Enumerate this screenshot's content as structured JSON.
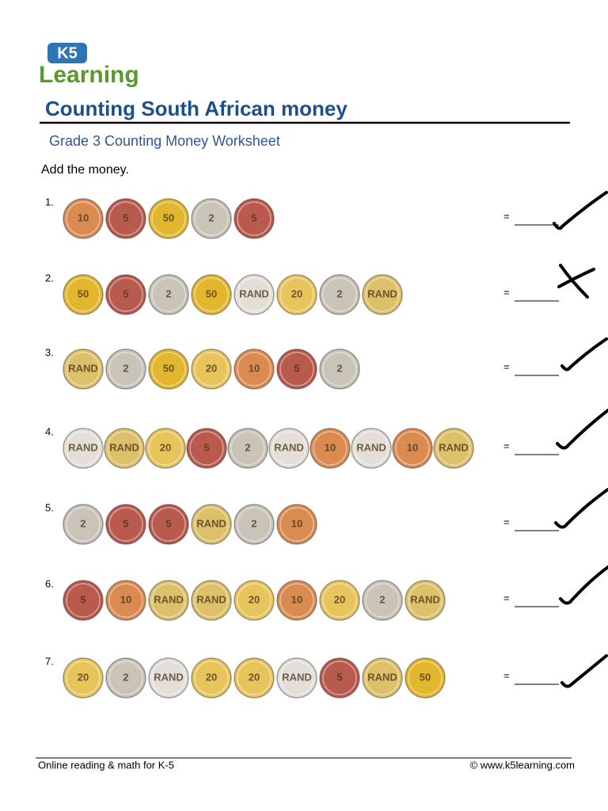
{
  "header": {
    "logo_badge": "K5",
    "logo_word": "Learning",
    "title": "Counting South African money",
    "subtitle": "Grade 3 Counting Money Worksheet"
  },
  "instruction": "Add the money.",
  "equals": "=",
  "questions": [
    {
      "number": "1.",
      "coins": [
        {
          "face": "10",
          "color": "#d98b52"
        },
        {
          "face": "5",
          "color": "#b95a4e"
        },
        {
          "face": "50",
          "color": "#e2b62e"
        },
        {
          "face": "2",
          "color": "#c9c3b8"
        },
        {
          "face": "5",
          "color": "#b95a4e"
        }
      ]
    },
    {
      "number": "2.",
      "coins": [
        {
          "face": "50",
          "color": "#e2b62e"
        },
        {
          "face": "5",
          "color": "#b95a4e"
        },
        {
          "face": "2",
          "color": "#c9c3b8"
        },
        {
          "face": "50",
          "color": "#e2b62e"
        },
        {
          "face": "RAND",
          "color": "#e3dfd8"
        },
        {
          "face": "20",
          "color": "#e8c45c"
        },
        {
          "face": "2",
          "color": "#c9c3b8"
        },
        {
          "face": "RAND",
          "color": "#dcc06a"
        }
      ]
    },
    {
      "number": "3.",
      "coins": [
        {
          "face": "RAND",
          "color": "#dcc06a"
        },
        {
          "face": "2",
          "color": "#c9c3b8"
        },
        {
          "face": "50",
          "color": "#e2b62e"
        },
        {
          "face": "20",
          "color": "#e8c45c"
        },
        {
          "face": "10",
          "color": "#d98b52"
        },
        {
          "face": "5",
          "color": "#b95a4e"
        },
        {
          "face": "2",
          "color": "#c9c3b8"
        }
      ]
    },
    {
      "number": "4.",
      "coins": [
        {
          "face": "RAND",
          "color": "#e3dfd8"
        },
        {
          "face": "RAND",
          "color": "#dcc06a"
        },
        {
          "face": "20",
          "color": "#e8c45c"
        },
        {
          "face": "5",
          "color": "#b95a4e"
        },
        {
          "face": "2",
          "color": "#c9c3b8"
        },
        {
          "face": "RAND",
          "color": "#e3dfd8"
        },
        {
          "face": "10",
          "color": "#d98b52"
        },
        {
          "face": "RAND",
          "color": "#e3dfd8"
        },
        {
          "face": "10",
          "color": "#d98b52"
        },
        {
          "face": "RAND",
          "color": "#dcc06a"
        }
      ]
    },
    {
      "number": "5.",
      "coins": [
        {
          "face": "2",
          "color": "#c9c3b8"
        },
        {
          "face": "5",
          "color": "#b95a4e"
        },
        {
          "face": "5",
          "color": "#b95a4e"
        },
        {
          "face": "RAND",
          "color": "#dcc06a"
        },
        {
          "face": "2",
          "color": "#c9c3b8"
        },
        {
          "face": "10",
          "color": "#d98b52"
        }
      ]
    },
    {
      "number": "6.",
      "coins": [
        {
          "face": "5",
          "color": "#b95a4e"
        },
        {
          "face": "10",
          "color": "#d98b52"
        },
        {
          "face": "RAND",
          "color": "#dcc06a"
        },
        {
          "face": "RAND",
          "color": "#dcc06a"
        },
        {
          "face": "20",
          "color": "#e8c45c"
        },
        {
          "face": "10",
          "color": "#d98b52"
        },
        {
          "face": "20",
          "color": "#e8c45c"
        },
        {
          "face": "2",
          "color": "#c9c3b8"
        },
        {
          "face": "RAND",
          "color": "#dcc06a"
        }
      ]
    },
    {
      "number": "7.",
      "coins": [
        {
          "face": "20",
          "color": "#e8c45c"
        },
        {
          "face": "2",
          "color": "#c9c3b8"
        },
        {
          "face": "RAND",
          "color": "#e3dfd8"
        },
        {
          "face": "20",
          "color": "#e8c45c"
        },
        {
          "face": "20",
          "color": "#e8c45c"
        },
        {
          "face": "RAND",
          "color": "#e3dfd8"
        },
        {
          "face": "5",
          "color": "#b95a4e"
        },
        {
          "face": "RAND",
          "color": "#dcc06a"
        },
        {
          "face": "50",
          "color": "#e2b62e"
        }
      ]
    }
  ],
  "footer": {
    "left": "Online reading & math for K-5",
    "right": "©  www.k5learning.com"
  }
}
